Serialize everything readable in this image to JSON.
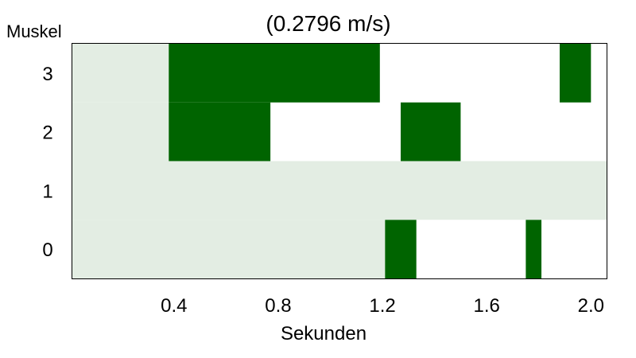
{
  "chart_data": {
    "type": "heatmap",
    "title": "(0.2796 m/s)",
    "xlabel": "Sekunden",
    "ylabel": "Muskel",
    "xlim": [
      0.01,
      2.06
    ],
    "rows": [
      0,
      1,
      2,
      3
    ],
    "xticks": [
      0.4,
      0.8,
      1.2,
      1.6,
      2.0
    ],
    "xtick_labels": [
      "0.4",
      "0.8",
      "1.2",
      "1.6",
      "2.0"
    ],
    "ytick_labels": [
      "0",
      "1",
      "2",
      "3"
    ],
    "colors": {
      "active": "#006400",
      "dormant": "#e3ede3",
      "off": "#ffffff"
    },
    "segments": [
      {
        "row": 0,
        "state": "dormant",
        "start": 0.01,
        "end": 1.21
      },
      {
        "row": 0,
        "state": "active",
        "start": 1.21,
        "end": 1.33
      },
      {
        "row": 0,
        "state": "active",
        "start": 1.75,
        "end": 1.81
      },
      {
        "row": 1,
        "state": "dormant",
        "start": 0.01,
        "end": 2.06
      },
      {
        "row": 2,
        "state": "dormant",
        "start": 0.01,
        "end": 0.38
      },
      {
        "row": 2,
        "state": "active",
        "start": 0.38,
        "end": 0.77
      },
      {
        "row": 2,
        "state": "active",
        "start": 1.27,
        "end": 1.5
      },
      {
        "row": 3,
        "state": "dormant",
        "start": 0.01,
        "end": 0.38
      },
      {
        "row": 3,
        "state": "active",
        "start": 0.38,
        "end": 1.19
      },
      {
        "row": 3,
        "state": "active",
        "start": 1.88,
        "end": 2.0
      }
    ]
  }
}
